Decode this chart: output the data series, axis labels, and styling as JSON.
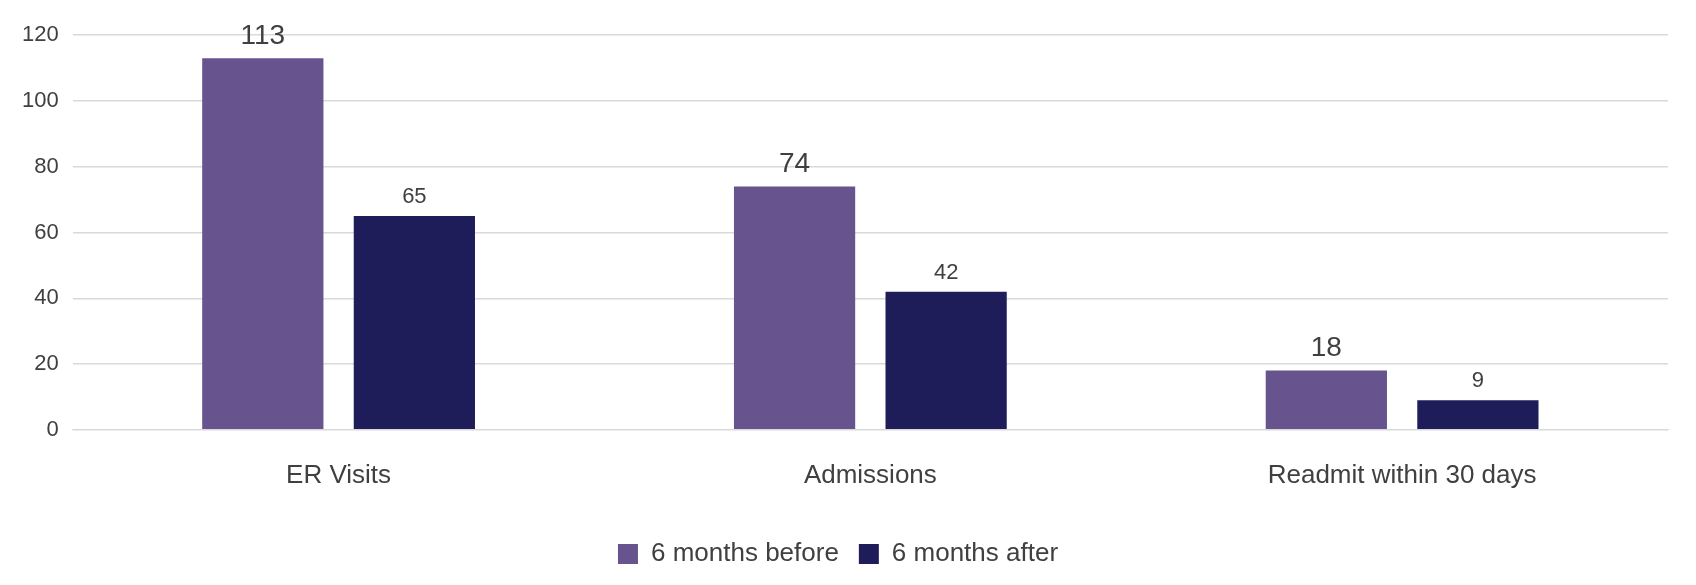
{
  "chart_data": {
    "type": "bar",
    "categories": [
      "ER Visits",
      "Admissions",
      "Readmit within 30 days"
    ],
    "series": [
      {
        "name": "6 months before",
        "color": "#67548e",
        "values": [
          113,
          74,
          18
        ]
      },
      {
        "name": "6 months after",
        "color": "#1f1c5a",
        "values": [
          65,
          42,
          9
        ]
      }
    ],
    "ylim": [
      0,
      120
    ],
    "yticks": [
      0,
      20,
      40,
      60,
      80,
      100,
      120
    ],
    "grid": "y",
    "legend": "bottom",
    "data_labels": true
  }
}
